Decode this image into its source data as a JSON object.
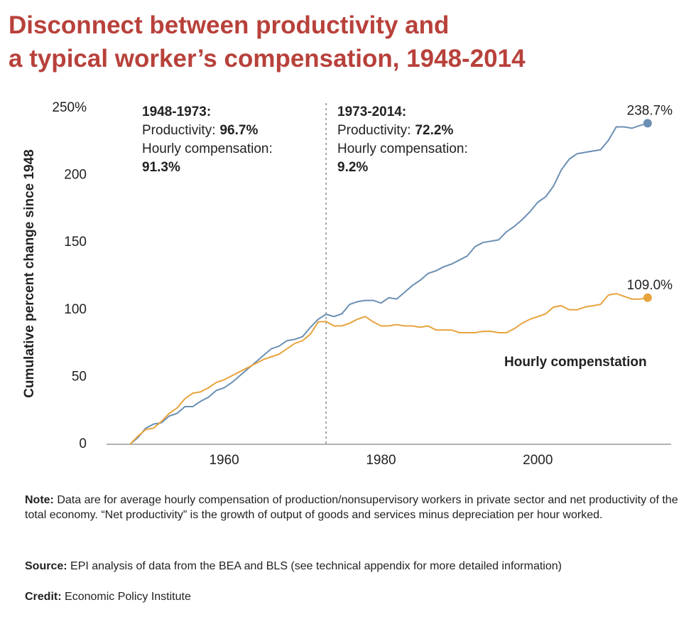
{
  "chart_data": {
    "type": "line",
    "title": [
      "Disconnect between productivity and",
      "a typical worker’s compensation, 1948-2014"
    ],
    "y_label": "Cumulative percent change since 1948",
    "xlim": [
      1945,
      2017
    ],
    "xticks": [
      1960,
      1980,
      2000
    ],
    "ylim": [
      0,
      250
    ],
    "yticks": [
      0,
      50,
      100,
      150,
      {
        "value": 250,
        "label": "250%"
      },
      200
    ],
    "grid": false,
    "divider_x": 1973,
    "annotations": [
      {
        "heading": "1948-1973:",
        "productivity_label": "Productivity:",
        "productivity_value": "96.7%",
        "compensation_label": "Hourly compensation:",
        "compensation_value": "91.3%"
      },
      {
        "heading": "1973-2014:",
        "productivity_label": "Productivity:",
        "productivity_value": "72.2%",
        "compensation_label": "Hourly compensation:",
        "compensation_value": "9.2%"
      }
    ],
    "x": [
      1948,
      1949,
      1950,
      1951,
      1952,
      1953,
      1954,
      1955,
      1956,
      1957,
      1958,
      1959,
      1960,
      1961,
      1962,
      1963,
      1964,
      1965,
      1966,
      1967,
      1968,
      1969,
      1970,
      1971,
      1972,
      1973,
      1974,
      1975,
      1976,
      1977,
      1978,
      1979,
      1980,
      1981,
      1982,
      1983,
      1984,
      1985,
      1986,
      1987,
      1988,
      1989,
      1990,
      1991,
      1992,
      1993,
      1994,
      1995,
      1996,
      1997,
      1998,
      1999,
      2000,
      2001,
      2002,
      2003,
      2004,
      2005,
      2006,
      2007,
      2008,
      2009,
      2010,
      2011,
      2012,
      2013,
      2014
    ],
    "series": [
      {
        "color": "#6b8fb3",
        "values": [
          0,
          5,
          12,
          15,
          16,
          21,
          23,
          28,
          28,
          32,
          35,
          40,
          42,
          46,
          51,
          56,
          61,
          66,
          71,
          73,
          77,
          78,
          80,
          87,
          93,
          96.7,
          95,
          97,
          104,
          106,
          107,
          107,
          105,
          109,
          108,
          113,
          118,
          122,
          127,
          129,
          132,
          134,
          137,
          140,
          147,
          150,
          151,
          152,
          158,
          162,
          167,
          173,
          180,
          184,
          192,
          204,
          212,
          216,
          217,
          218,
          219,
          226,
          236,
          236,
          235,
          237,
          238.7
        ],
        "value_labels": [
          null,
          null,
          null,
          null,
          null,
          null,
          null,
          null,
          null,
          null,
          null,
          null,
          null,
          null,
          null,
          null,
          null,
          null,
          null,
          null,
          null,
          null,
          null,
          null,
          null,
          null,
          null,
          null,
          null,
          null,
          null,
          null,
          null,
          null,
          null,
          null,
          null,
          null,
          null,
          null,
          null,
          null,
          null,
          null,
          null,
          null,
          null,
          null,
          null,
          null,
          null,
          null,
          null,
          null,
          null,
          null,
          null,
          null,
          null,
          null,
          null,
          null,
          null,
          null,
          null,
          null,
          "238.7%"
        ]
      },
      {
        "name": "Hourly compenstation",
        "color": "#e8a33d",
        "values": [
          0,
          6,
          11,
          12,
          17,
          23,
          27,
          34,
          38,
          39,
          42,
          46,
          48,
          51,
          54,
          57,
          60,
          63,
          65,
          67,
          71,
          75,
          77,
          82,
          91,
          91.3,
          88,
          88,
          90,
          93,
          95,
          91,
          88,
          88,
          89,
          88,
          88,
          87,
          88,
          85,
          85,
          85,
          83,
          83,
          83,
          84,
          84,
          83,
          83,
          86,
          90,
          93,
          95,
          97,
          102,
          103,
          100,
          100,
          102,
          103,
          104,
          111,
          112,
          110,
          108,
          108,
          109.0
        ],
        "value_labels": [
          null,
          null,
          null,
          null,
          null,
          null,
          null,
          null,
          null,
          null,
          null,
          null,
          null,
          null,
          null,
          null,
          null,
          null,
          null,
          null,
          null,
          null,
          null,
          null,
          null,
          null,
          null,
          null,
          null,
          null,
          null,
          null,
          null,
          null,
          null,
          null,
          null,
          null,
          null,
          null,
          null,
          null,
          null,
          null,
          null,
          null,
          null,
          null,
          null,
          null,
          null,
          null,
          null,
          null,
          null,
          null,
          null,
          null,
          null,
          null,
          null,
          null,
          null,
          null,
          null,
          null,
          "109.0%"
        ]
      }
    ],
    "notes": {
      "note_label": "Note:",
      "note": "Data are for average hourly compensation of production/nonsupervisory workers in private sector and net productivity of the total economy. “Net productivity” is the growth of output of goods and services minus depreciation per hour worked.",
      "source_label": "Source:",
      "source": "EPI analysis of data from the BEA and BLS (see technical appendix for more detailed information)",
      "credit_label": "Credit:",
      "credit": "Economic Policy Institute"
    }
  }
}
